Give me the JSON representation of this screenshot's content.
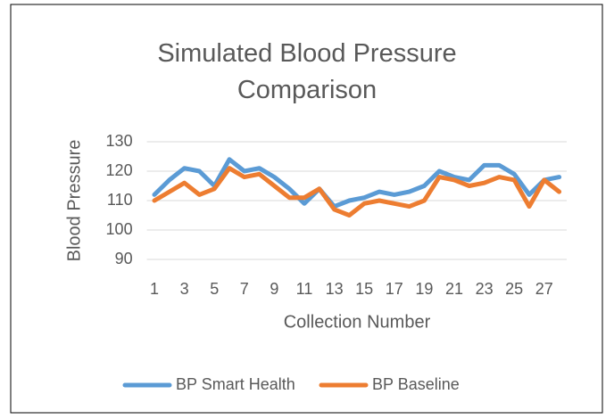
{
  "chart_data": {
    "type": "line",
    "title": "Simulated Blood Pressure Comparison",
    "x_label": "Collection Number",
    "y_label": "Blood Pressure",
    "categories": [
      1,
      null,
      3,
      null,
      5,
      null,
      7,
      null,
      9,
      null,
      11,
      null,
      13,
      null,
      15,
      null,
      17,
      null,
      19,
      null,
      21,
      null,
      23,
      null,
      25,
      null,
      27,
      null
    ],
    "series": [
      {
        "name": "BP Smart Health",
        "color": "#5b9bd5",
        "values": [
          112,
          117,
          121,
          120,
          115,
          124,
          120,
          121,
          118,
          114,
          109,
          114,
          108,
          110,
          111,
          113,
          112,
          113,
          115,
          120,
          118,
          117,
          122,
          122,
          119,
          112,
          117,
          118
        ]
      },
      {
        "name": "BP Baseline",
        "color": "#ed7d31",
        "values": [
          110,
          113,
          116,
          112,
          114,
          121,
          118,
          119,
          115,
          111,
          111,
          114,
          107,
          105,
          109,
          110,
          109,
          108,
          110,
          118,
          117,
          115,
          116,
          118,
          117,
          108,
          117,
          113
        ]
      }
    ],
    "ylim": [
      90,
      130
    ],
    "yticks": [
      90,
      100,
      110,
      120,
      130
    ],
    "grid": true,
    "legend": "bottom"
  }
}
